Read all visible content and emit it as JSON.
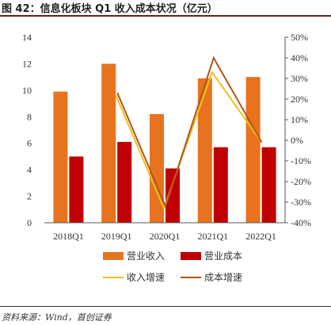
{
  "page": {
    "title": "图 42：信息化板块 Q1 收入成本状况（亿元）",
    "source": "资料来源：Wind，首创证券"
  },
  "colors": {
    "revenue": "#E8731E",
    "cost": "#C00000",
    "revenue_growth": "#E8C21E",
    "cost_growth": "#B5541A",
    "rule": "#6b1f1f"
  },
  "chart_data": {
    "type": "bar",
    "categories": [
      "2018Q1",
      "2019Q1",
      "2020Q1",
      "2021Q1",
      "2022Q1"
    ],
    "series": [
      {
        "name": "营业收入",
        "type": "bar",
        "axis": "left",
        "values": [
          9.9,
          12.0,
          8.2,
          10.9,
          11.0
        ]
      },
      {
        "name": "营业成本",
        "type": "bar",
        "axis": "left",
        "values": [
          5.0,
          6.1,
          4.1,
          5.7,
          5.7
        ]
      },
      {
        "name": "收入增速",
        "type": "line",
        "axis": "right",
        "values": [
          null,
          22,
          -33,
          33,
          0
        ]
      },
      {
        "name": "成本增速",
        "type": "line",
        "axis": "right",
        "values": [
          null,
          23,
          -32,
          40,
          -1
        ]
      }
    ],
    "y_left": {
      "min": 0,
      "max": 14,
      "step": 2,
      "ticks": [
        "0",
        "2",
        "4",
        "6",
        "8",
        "10",
        "12",
        "14"
      ]
    },
    "y_right": {
      "min": -40,
      "max": 50,
      "step": 10,
      "ticks": [
        "-40%",
        "-30%",
        "-20%",
        "-10%",
        "0%",
        "10%",
        "20%",
        "30%",
        "40%",
        "50%"
      ]
    },
    "legend": {
      "placement": "bottom",
      "items": [
        "营业收入",
        "营业成本",
        "收入增速",
        "成本增速"
      ]
    },
    "grid": false
  }
}
